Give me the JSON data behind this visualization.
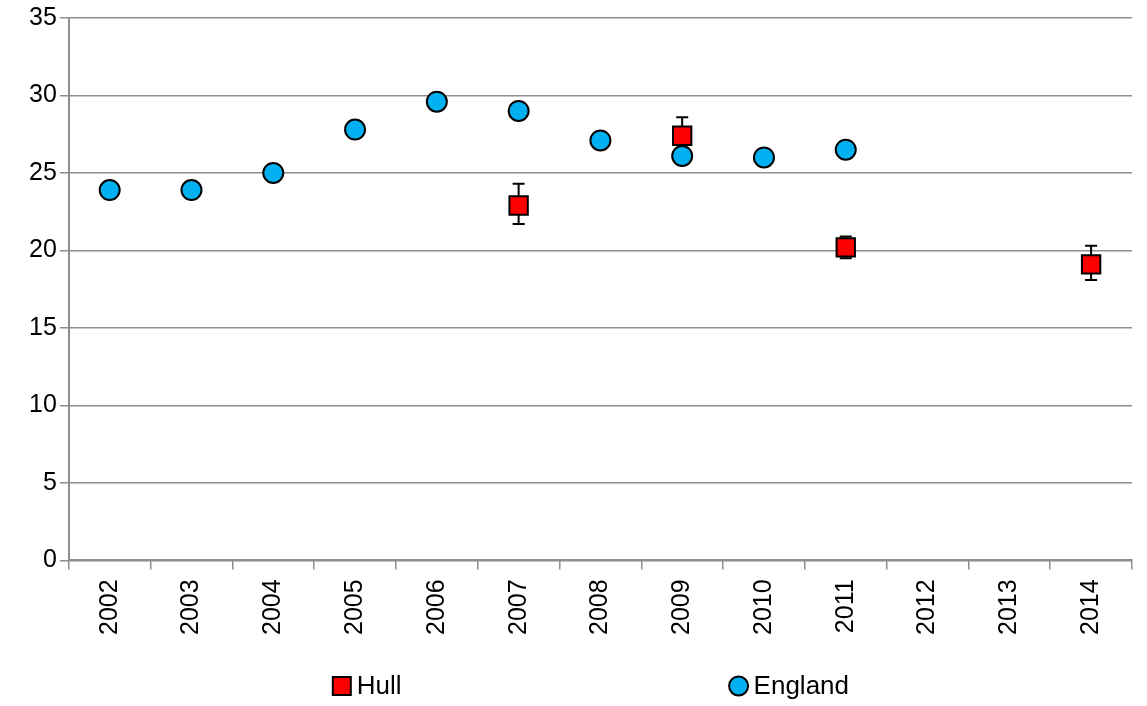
{
  "chart_data": {
    "type": "scatter",
    "categories": [
      "2002",
      "2003",
      "2004",
      "2005",
      "2006",
      "2007",
      "2008",
      "2009",
      "2010",
      "2011",
      "2012",
      "2013",
      "2014"
    ],
    "ylim": [
      0,
      35
    ],
    "yticks": [
      0,
      5,
      10,
      15,
      20,
      25,
      30,
      35
    ],
    "grid": "y",
    "legend": "bottom",
    "series": [
      {
        "name": "Hull",
        "color": "#ff0000",
        "marker": "square",
        "values": [
          null,
          null,
          null,
          null,
          null,
          22.9,
          null,
          27.4,
          null,
          20.2,
          null,
          null,
          19.1
        ],
        "errors": [
          null,
          null,
          null,
          null,
          null,
          [
            21.7,
            24.3
          ],
          null,
          [
            27.4,
            28.6
          ],
          null,
          [
            19.5,
            20.9
          ],
          null,
          null,
          [
            18.1,
            20.3
          ]
        ]
      },
      {
        "name": "England",
        "color": "#00b0f0",
        "marker": "circle",
        "values": [
          23.9,
          23.9,
          25.0,
          27.8,
          29.6,
          29.0,
          27.1,
          26.1,
          26.0,
          26.5,
          null,
          null,
          null
        ]
      }
    ]
  }
}
